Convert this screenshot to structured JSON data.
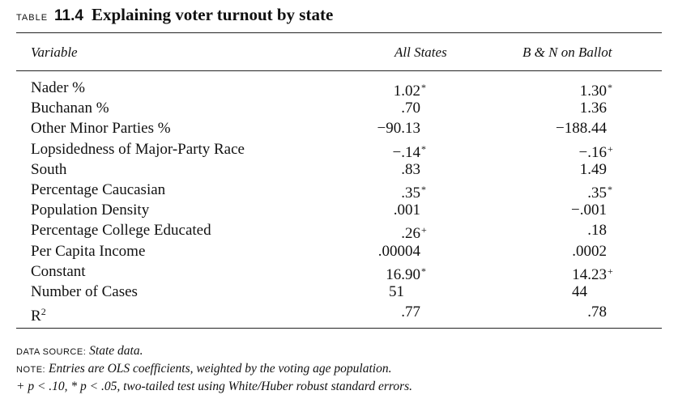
{
  "title": {
    "label": "TABLE",
    "number": "11.4",
    "text": "Explaining voter turnout by state"
  },
  "headers": {
    "variable": "Variable",
    "col1": "All States",
    "col2": "B & N on Ballot"
  },
  "rows": [
    {
      "variable": "Nader %",
      "all_states": "1.02",
      "all_states_sig": "*",
      "bn_on_ballot": "1.30",
      "bn_on_ballot_sig": "*"
    },
    {
      "variable": "Buchanan %",
      "all_states": ".70",
      "all_states_sig": "",
      "bn_on_ballot": "1.36",
      "bn_on_ballot_sig": ""
    },
    {
      "variable": "Other Minor Parties %",
      "all_states": "−90.13",
      "all_states_sig": "",
      "bn_on_ballot": "−188.44",
      "bn_on_ballot_sig": ""
    },
    {
      "variable": "Lopsidedness of Major-Party Race",
      "all_states": "−.14",
      "all_states_sig": "*",
      "bn_on_ballot": "−.16",
      "bn_on_ballot_sig": "+"
    },
    {
      "variable": "South",
      "all_states": ".83",
      "all_states_sig": "",
      "bn_on_ballot": "1.49",
      "bn_on_ballot_sig": ""
    },
    {
      "variable": "Percentage Caucasian",
      "all_states": ".35",
      "all_states_sig": "*",
      "bn_on_ballot": ".35",
      "bn_on_ballot_sig": "*"
    },
    {
      "variable": "Population Density",
      "all_states": ".001",
      "all_states_sig": "",
      "bn_on_ballot": "−.001",
      "bn_on_ballot_sig": ""
    },
    {
      "variable": "Percentage College Educated",
      "all_states": ".26",
      "all_states_sig": "+",
      "bn_on_ballot": ".18",
      "bn_on_ballot_sig": ""
    },
    {
      "variable": "Per Capita Income",
      "all_states": ".00004",
      "all_states_sig": "",
      "bn_on_ballot": ".0002",
      "bn_on_ballot_sig": ""
    },
    {
      "variable": "Constant",
      "all_states": "16.90",
      "all_states_sig": "*",
      "bn_on_ballot": "14.23",
      "bn_on_ballot_sig": "+"
    },
    {
      "variable": "Number of Cases",
      "all_states": "51",
      "all_states_sig": "",
      "bn_on_ballot": "44",
      "bn_on_ballot_sig": ""
    },
    {
      "variable": "R",
      "variable_sup": "2",
      "all_states": ".77",
      "all_states_sig": "",
      "bn_on_ballot": ".78",
      "bn_on_ballot_sig": ""
    }
  ],
  "notes": {
    "source_key": "DATA SOURCE:",
    "source_text": "State data.",
    "note_key": "NOTE:",
    "note_text": "Entries are OLS coefficients, weighted by the voting age population.",
    "sig_text": "+ p < .10, * p < .05, two-tailed test using White/Huber robust standard errors."
  }
}
